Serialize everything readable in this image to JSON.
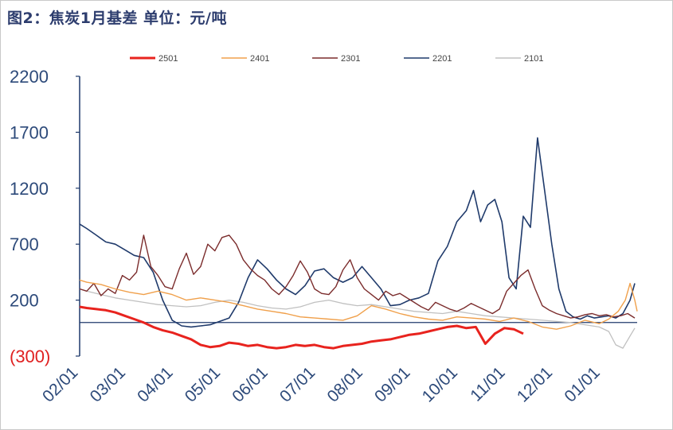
{
  "title": "图2：焦炭1月基差 单位：元/吨",
  "chart_data": {
    "type": "line",
    "title": "图2：焦炭1月基差 单位：元/吨",
    "xlabel": "",
    "ylabel": "",
    "ylim": [
      -300,
      2200
    ],
    "y_ticks": [
      "2200",
      "1700",
      "1200",
      "700",
      "200",
      "(300)"
    ],
    "y_tick_values": [
      2200,
      1700,
      1200,
      700,
      200,
      -300
    ],
    "y_tick_colors": [
      "#2d4a7a",
      "#2d4a7a",
      "#2d4a7a",
      "#2d4a7a",
      "#2d4a7a",
      "#e02020"
    ],
    "x_ticks": [
      "02/01",
      "03/01",
      "04/01",
      "05/01",
      "06/01",
      "07/01",
      "08/01",
      "09/01",
      "10/01",
      "11/01",
      "12/01",
      "01/01"
    ],
    "x_tick_positions": [
      0,
      1,
      2,
      3,
      4,
      5,
      6,
      7,
      8,
      9,
      10,
      11
    ],
    "xlim": [
      -0.15,
      11.6
    ],
    "legend_position": "top",
    "grid": false,
    "series": [
      {
        "name": "2501",
        "color": "#e8231e",
        "width": 3,
        "x": [
          -0.15,
          0.0,
          0.2,
          0.4,
          0.6,
          0.8,
          1.0,
          1.2,
          1.4,
          1.6,
          1.8,
          2.0,
          2.2,
          2.4,
          2.6,
          2.8,
          3.0,
          3.2,
          3.4,
          3.6,
          3.8,
          4.0,
          4.2,
          4.4,
          4.6,
          4.8,
          5.0,
          5.2,
          5.4,
          5.6,
          5.8,
          6.0,
          6.2,
          6.4,
          6.6,
          6.8,
          7.0,
          7.2,
          7.4,
          7.6,
          7.8,
          8.0,
          8.2,
          8.4,
          8.6,
          8.8,
          9.0,
          9.2
        ],
        "values": [
          140,
          130,
          120,
          110,
          90,
          60,
          30,
          0,
          -40,
          -70,
          -90,
          -120,
          -150,
          -200,
          -220,
          -210,
          -180,
          -190,
          -210,
          -200,
          -220,
          -230,
          -220,
          -200,
          -210,
          -200,
          -220,
          -230,
          -210,
          -200,
          -190,
          -170,
          -160,
          -150,
          -130,
          -110,
          -100,
          -80,
          -60,
          -40,
          -30,
          -50,
          -40,
          -190,
          -100,
          -50,
          -60,
          -100
        ]
      },
      {
        "name": "2401",
        "color": "#f0a04b",
        "width": 1.4,
        "x": [
          -0.15,
          0.0,
          0.3,
          0.6,
          0.9,
          1.2,
          1.5,
          1.8,
          2.1,
          2.4,
          2.7,
          3.0,
          3.3,
          3.6,
          3.9,
          4.2,
          4.5,
          4.8,
          5.1,
          5.4,
          5.7,
          6.0,
          6.3,
          6.6,
          6.9,
          7.2,
          7.5,
          7.8,
          8.1,
          8.4,
          8.7,
          9.0,
          9.3,
          9.6,
          9.9,
          10.2,
          10.5,
          10.8,
          11.0,
          11.2,
          11.35,
          11.45,
          11.55,
          11.6
        ],
        "values": [
          380,
          360,
          340,
          300,
          270,
          250,
          280,
          250,
          200,
          220,
          200,
          180,
          150,
          120,
          100,
          80,
          50,
          40,
          30,
          20,
          60,
          150,
          120,
          80,
          50,
          30,
          20,
          50,
          40,
          30,
          10,
          40,
          10,
          -40,
          -60,
          -30,
          20,
          -10,
          30,
          100,
          200,
          350,
          200,
          100
        ]
      },
      {
        "name": "2301",
        "color": "#7b2c2c",
        "width": 1.4,
        "x": [
          -0.15,
          0.0,
          0.15,
          0.3,
          0.45,
          0.6,
          0.75,
          0.9,
          1.05,
          1.2,
          1.35,
          1.5,
          1.65,
          1.8,
          1.95,
          2.1,
          2.25,
          2.4,
          2.55,
          2.7,
          2.85,
          3.0,
          3.15,
          3.3,
          3.45,
          3.6,
          3.75,
          3.9,
          4.05,
          4.2,
          4.35,
          4.5,
          4.65,
          4.8,
          4.95,
          5.1,
          5.25,
          5.4,
          5.55,
          5.7,
          5.85,
          6.0,
          6.15,
          6.3,
          6.45,
          6.6,
          6.75,
          6.9,
          7.05,
          7.2,
          7.35,
          7.5,
          7.65,
          7.8,
          7.95,
          8.1,
          8.25,
          8.4,
          8.55,
          8.7,
          8.85,
          9.0,
          9.15,
          9.3,
          9.45,
          9.6,
          9.75,
          9.9,
          10.05,
          10.2,
          10.35,
          10.5,
          10.65,
          10.8,
          10.95,
          11.1,
          11.25,
          11.4,
          11.55
        ],
        "values": [
          300,
          280,
          350,
          240,
          300,
          260,
          420,
          380,
          450,
          780,
          500,
          420,
          320,
          300,
          480,
          620,
          430,
          500,
          700,
          640,
          760,
          780,
          700,
          560,
          480,
          420,
          380,
          300,
          250,
          320,
          420,
          550,
          450,
          300,
          260,
          250,
          320,
          470,
          560,
          400,
          300,
          250,
          200,
          280,
          240,
          260,
          220,
          180,
          140,
          110,
          180,
          150,
          120,
          100,
          130,
          170,
          140,
          110,
          80,
          120,
          280,
          350,
          420,
          470,
          300,
          150,
          110,
          80,
          60,
          40,
          50,
          70,
          80,
          60,
          70,
          50,
          60,
          80,
          40
        ]
      },
      {
        "name": "2201",
        "color": "#1f3a6b",
        "width": 1.6,
        "x": [
          -0.15,
          0.0,
          0.2,
          0.4,
          0.6,
          0.8,
          1.0,
          1.2,
          1.4,
          1.6,
          1.8,
          2.0,
          2.2,
          2.4,
          2.6,
          2.8,
          3.0,
          3.2,
          3.4,
          3.6,
          3.8,
          4.0,
          4.2,
          4.4,
          4.6,
          4.8,
          5.0,
          5.2,
          5.4,
          5.6,
          5.8,
          6.0,
          6.2,
          6.4,
          6.6,
          6.8,
          7.0,
          7.2,
          7.4,
          7.6,
          7.8,
          8.0,
          8.15,
          8.3,
          8.45,
          8.6,
          8.75,
          8.9,
          9.05,
          9.2,
          9.35,
          9.5,
          9.65,
          9.8,
          9.95,
          10.1,
          10.25,
          10.4,
          10.55,
          10.7,
          10.85,
          11.0,
          11.15,
          11.3,
          11.45,
          11.55
        ],
        "values": [
          880,
          840,
          780,
          720,
          700,
          650,
          600,
          580,
          450,
          200,
          20,
          -30,
          -40,
          -30,
          -20,
          10,
          40,
          180,
          400,
          560,
          480,
          380,
          300,
          250,
          330,
          460,
          480,
          400,
          360,
          400,
          500,
          400,
          300,
          150,
          160,
          200,
          220,
          260,
          550,
          680,
          900,
          1000,
          1180,
          900,
          1050,
          1100,
          900,
          400,
          300,
          950,
          850,
          1650,
          1180,
          700,
          300,
          100,
          50,
          30,
          60,
          40,
          50,
          60,
          40,
          80,
          200,
          350
        ]
      },
      {
        "name": "2101",
        "color": "#c0c0c0",
        "width": 1.3,
        "x": [
          -0.15,
          0.0,
          0.3,
          0.6,
          0.9,
          1.2,
          1.5,
          1.8,
          2.1,
          2.4,
          2.7,
          3.0,
          3.3,
          3.6,
          3.9,
          4.2,
          4.5,
          4.8,
          5.1,
          5.4,
          5.7,
          6.0,
          6.3,
          6.6,
          6.9,
          7.2,
          7.5,
          7.8,
          8.1,
          8.4,
          8.7,
          9.0,
          9.3,
          9.6,
          9.9,
          10.2,
          10.5,
          10.8,
          11.0,
          11.15,
          11.3,
          11.45,
          11.55
        ],
        "values": [
          300,
          280,
          250,
          220,
          200,
          180,
          160,
          150,
          140,
          150,
          180,
          200,
          180,
          150,
          130,
          120,
          140,
          180,
          200,
          170,
          150,
          160,
          140,
          120,
          100,
          90,
          80,
          100,
          80,
          60,
          50,
          40,
          30,
          20,
          10,
          0,
          -20,
          -40,
          -80,
          -200,
          -230,
          -120,
          -50
        ]
      }
    ]
  }
}
